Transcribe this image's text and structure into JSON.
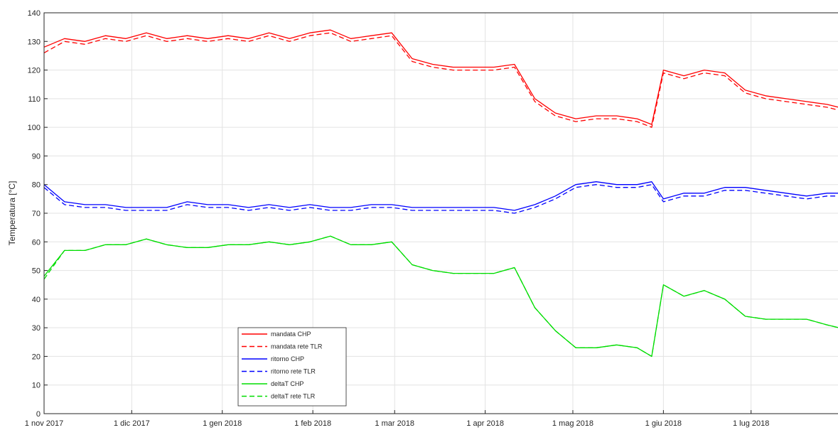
{
  "chart_data": {
    "type": "line",
    "title": "",
    "xlabel": "",
    "ylabel": "Temperatura [°C]",
    "xlim": [
      "2017-11-01",
      "2018-07-31"
    ],
    "ylim": [
      0,
      140
    ],
    "grid": true,
    "legend_position": "bottom-center",
    "x_ticks": [
      {
        "label": "1 nov 2017",
        "date": "2017-11-01"
      },
      {
        "label": "1 dic 2017",
        "date": "2017-12-01"
      },
      {
        "label": "1 gen 2018",
        "date": "2018-01-01"
      },
      {
        "label": "1 feb 2018",
        "date": "2018-02-01"
      },
      {
        "label": "1 mar 2018",
        "date": "2018-03-01"
      },
      {
        "label": "1 apr 2018",
        "date": "2018-04-01"
      },
      {
        "label": "1 mag 2018",
        "date": "2018-05-01"
      },
      {
        "label": "1 giu 2018",
        "date": "2018-06-01"
      },
      {
        "label": "1 lug 2018",
        "date": "2018-07-01"
      }
    ],
    "y_ticks": [
      0,
      10,
      20,
      30,
      40,
      50,
      60,
      70,
      80,
      90,
      100,
      110,
      120,
      130,
      140
    ],
    "series": [
      {
        "name": "mandata CHP",
        "color": "#ff0000",
        "style": "solid",
        "points": [
          [
            "2017-11-01",
            128
          ],
          [
            "2017-11-08",
            131
          ],
          [
            "2017-11-15",
            130
          ],
          [
            "2017-11-22",
            132
          ],
          [
            "2017-11-29",
            131
          ],
          [
            "2017-12-06",
            133
          ],
          [
            "2017-12-13",
            131
          ],
          [
            "2017-12-20",
            132
          ],
          [
            "2017-12-27",
            131
          ],
          [
            "2018-01-03",
            132
          ],
          [
            "2018-01-10",
            131
          ],
          [
            "2018-01-17",
            133
          ],
          [
            "2018-01-24",
            131
          ],
          [
            "2018-01-31",
            133
          ],
          [
            "2018-02-07",
            134
          ],
          [
            "2018-02-14",
            131
          ],
          [
            "2018-02-21",
            132
          ],
          [
            "2018-02-28",
            133
          ],
          [
            "2018-03-07",
            124
          ],
          [
            "2018-03-14",
            122
          ],
          [
            "2018-03-21",
            121
          ],
          [
            "2018-03-28",
            121
          ],
          [
            "2018-04-04",
            121
          ],
          [
            "2018-04-11",
            122
          ],
          [
            "2018-04-18",
            110
          ],
          [
            "2018-04-25",
            105
          ],
          [
            "2018-05-02",
            103
          ],
          [
            "2018-05-09",
            104
          ],
          [
            "2018-05-16",
            104
          ],
          [
            "2018-05-23",
            103
          ],
          [
            "2018-05-28",
            101
          ],
          [
            "2018-06-01",
            120
          ],
          [
            "2018-06-08",
            118
          ],
          [
            "2018-06-15",
            120
          ],
          [
            "2018-06-22",
            119
          ],
          [
            "2018-06-29",
            113
          ],
          [
            "2018-07-06",
            111
          ],
          [
            "2018-07-13",
            110
          ],
          [
            "2018-07-20",
            109
          ],
          [
            "2018-07-27",
            108
          ],
          [
            "2018-07-31",
            107
          ]
        ]
      },
      {
        "name": "mandata rete TLR",
        "color": "#ff0000",
        "style": "dashed",
        "points": [
          [
            "2017-11-01",
            126
          ],
          [
            "2017-11-08",
            130
          ],
          [
            "2017-11-15",
            129
          ],
          [
            "2017-11-22",
            131
          ],
          [
            "2017-11-29",
            130
          ],
          [
            "2017-12-06",
            132
          ],
          [
            "2017-12-13",
            130
          ],
          [
            "2017-12-20",
            131
          ],
          [
            "2017-12-27",
            130
          ],
          [
            "2018-01-03",
            131
          ],
          [
            "2018-01-10",
            130
          ],
          [
            "2018-01-17",
            132
          ],
          [
            "2018-01-24",
            130
          ],
          [
            "2018-01-31",
            132
          ],
          [
            "2018-02-07",
            133
          ],
          [
            "2018-02-14",
            130
          ],
          [
            "2018-02-21",
            131
          ],
          [
            "2018-02-28",
            132
          ],
          [
            "2018-03-07",
            123
          ],
          [
            "2018-03-14",
            121
          ],
          [
            "2018-03-21",
            120
          ],
          [
            "2018-03-28",
            120
          ],
          [
            "2018-04-04",
            120
          ],
          [
            "2018-04-11",
            121
          ],
          [
            "2018-04-18",
            109
          ],
          [
            "2018-04-25",
            104
          ],
          [
            "2018-05-02",
            102
          ],
          [
            "2018-05-09",
            103
          ],
          [
            "2018-05-16",
            103
          ],
          [
            "2018-05-23",
            102
          ],
          [
            "2018-05-28",
            100
          ],
          [
            "2018-06-01",
            119
          ],
          [
            "2018-06-08",
            117
          ],
          [
            "2018-06-15",
            119
          ],
          [
            "2018-06-22",
            118
          ],
          [
            "2018-06-29",
            112
          ],
          [
            "2018-07-06",
            110
          ],
          [
            "2018-07-13",
            109
          ],
          [
            "2018-07-20",
            108
          ],
          [
            "2018-07-27",
            107
          ],
          [
            "2018-07-31",
            106
          ]
        ]
      },
      {
        "name": "ritorno CHP",
        "color": "#0000ff",
        "style": "solid",
        "points": [
          [
            "2017-11-01",
            80
          ],
          [
            "2017-11-08",
            74
          ],
          [
            "2017-11-15",
            73
          ],
          [
            "2017-11-22",
            73
          ],
          [
            "2017-11-29",
            72
          ],
          [
            "2017-12-06",
            72
          ],
          [
            "2017-12-13",
            72
          ],
          [
            "2017-12-20",
            74
          ],
          [
            "2017-12-27",
            73
          ],
          [
            "2018-01-03",
            73
          ],
          [
            "2018-01-10",
            72
          ],
          [
            "2018-01-17",
            73
          ],
          [
            "2018-01-24",
            72
          ],
          [
            "2018-01-31",
            73
          ],
          [
            "2018-02-07",
            72
          ],
          [
            "2018-02-14",
            72
          ],
          [
            "2018-02-21",
            73
          ],
          [
            "2018-02-28",
            73
          ],
          [
            "2018-03-07",
            72
          ],
          [
            "2018-03-14",
            72
          ],
          [
            "2018-03-21",
            72
          ],
          [
            "2018-03-28",
            72
          ],
          [
            "2018-04-04",
            72
          ],
          [
            "2018-04-11",
            71
          ],
          [
            "2018-04-18",
            73
          ],
          [
            "2018-04-25",
            76
          ],
          [
            "2018-05-02",
            80
          ],
          [
            "2018-05-09",
            81
          ],
          [
            "2018-05-16",
            80
          ],
          [
            "2018-05-23",
            80
          ],
          [
            "2018-05-28",
            81
          ],
          [
            "2018-06-01",
            75
          ],
          [
            "2018-06-08",
            77
          ],
          [
            "2018-06-15",
            77
          ],
          [
            "2018-06-22",
            79
          ],
          [
            "2018-06-29",
            79
          ],
          [
            "2018-07-06",
            78
          ],
          [
            "2018-07-13",
            77
          ],
          [
            "2018-07-20",
            76
          ],
          [
            "2018-07-27",
            77
          ],
          [
            "2018-07-31",
            77
          ]
        ]
      },
      {
        "name": "ritorno rete TLR",
        "color": "#0000ff",
        "style": "dashed",
        "points": [
          [
            "2017-11-01",
            79
          ],
          [
            "2017-11-08",
            73
          ],
          [
            "2017-11-15",
            72
          ],
          [
            "2017-11-22",
            72
          ],
          [
            "2017-11-29",
            71
          ],
          [
            "2017-12-06",
            71
          ],
          [
            "2017-12-13",
            71
          ],
          [
            "2017-12-20",
            73
          ],
          [
            "2017-12-27",
            72
          ],
          [
            "2018-01-03",
            72
          ],
          [
            "2018-01-10",
            71
          ],
          [
            "2018-01-17",
            72
          ],
          [
            "2018-01-24",
            71
          ],
          [
            "2018-01-31",
            72
          ],
          [
            "2018-02-07",
            71
          ],
          [
            "2018-02-14",
            71
          ],
          [
            "2018-02-21",
            72
          ],
          [
            "2018-02-28",
            72
          ],
          [
            "2018-03-07",
            71
          ],
          [
            "2018-03-14",
            71
          ],
          [
            "2018-03-21",
            71
          ],
          [
            "2018-03-28",
            71
          ],
          [
            "2018-04-04",
            71
          ],
          [
            "2018-04-11",
            70
          ],
          [
            "2018-04-18",
            72
          ],
          [
            "2018-04-25",
            75
          ],
          [
            "2018-05-02",
            79
          ],
          [
            "2018-05-09",
            80
          ],
          [
            "2018-05-16",
            79
          ],
          [
            "2018-05-23",
            79
          ],
          [
            "2018-05-28",
            80
          ],
          [
            "2018-06-01",
            74
          ],
          [
            "2018-06-08",
            76
          ],
          [
            "2018-06-15",
            76
          ],
          [
            "2018-06-22",
            78
          ],
          [
            "2018-06-29",
            78
          ],
          [
            "2018-07-06",
            77
          ],
          [
            "2018-07-13",
            76
          ],
          [
            "2018-07-20",
            75
          ],
          [
            "2018-07-27",
            76
          ],
          [
            "2018-07-31",
            76
          ]
        ]
      },
      {
        "name": "deltaT CHP",
        "color": "#00dd00",
        "style": "solid",
        "points": [
          [
            "2017-11-01",
            48
          ],
          [
            "2017-11-08",
            57
          ],
          [
            "2017-11-15",
            57
          ],
          [
            "2017-11-22",
            59
          ],
          [
            "2017-11-29",
            59
          ],
          [
            "2017-12-06",
            61
          ],
          [
            "2017-12-13",
            59
          ],
          [
            "2017-12-20",
            58
          ],
          [
            "2017-12-27",
            58
          ],
          [
            "2018-01-03",
            59
          ],
          [
            "2018-01-10",
            59
          ],
          [
            "2018-01-17",
            60
          ],
          [
            "2018-01-24",
            59
          ],
          [
            "2018-01-31",
            60
          ],
          [
            "2018-02-07",
            62
          ],
          [
            "2018-02-14",
            59
          ],
          [
            "2018-02-21",
            59
          ],
          [
            "2018-02-28",
            60
          ],
          [
            "2018-03-07",
            52
          ],
          [
            "2018-03-14",
            50
          ],
          [
            "2018-03-21",
            49
          ],
          [
            "2018-03-28",
            49
          ],
          [
            "2018-04-04",
            49
          ],
          [
            "2018-04-11",
            51
          ],
          [
            "2018-04-18",
            37
          ],
          [
            "2018-04-25",
            29
          ],
          [
            "2018-05-02",
            23
          ],
          [
            "2018-05-09",
            23
          ],
          [
            "2018-05-16",
            24
          ],
          [
            "2018-05-23",
            23
          ],
          [
            "2018-05-28",
            20
          ],
          [
            "2018-06-01",
            45
          ],
          [
            "2018-06-08",
            41
          ],
          [
            "2018-06-15",
            43
          ],
          [
            "2018-06-22",
            40
          ],
          [
            "2018-06-29",
            34
          ],
          [
            "2018-07-06",
            33
          ],
          [
            "2018-07-13",
            33
          ],
          [
            "2018-07-20",
            33
          ],
          [
            "2018-07-27",
            31
          ],
          [
            "2018-07-31",
            30
          ]
        ]
      },
      {
        "name": "deltaT rete TLR",
        "color": "#00dd00",
        "style": "dashed",
        "points": [
          [
            "2017-11-01",
            47
          ],
          [
            "2017-11-08",
            57
          ],
          [
            "2017-11-15",
            57
          ],
          [
            "2017-11-22",
            59
          ],
          [
            "2017-11-29",
            59
          ],
          [
            "2017-12-06",
            61
          ],
          [
            "2017-12-13",
            59
          ],
          [
            "2017-12-20",
            58
          ],
          [
            "2017-12-27",
            58
          ],
          [
            "2018-01-03",
            59
          ],
          [
            "2018-01-10",
            59
          ],
          [
            "2018-01-17",
            60
          ],
          [
            "2018-01-24",
            59
          ],
          [
            "2018-01-31",
            60
          ],
          [
            "2018-02-07",
            62
          ],
          [
            "2018-02-14",
            59
          ],
          [
            "2018-02-21",
            59
          ],
          [
            "2018-02-28",
            60
          ],
          [
            "2018-03-07",
            52
          ],
          [
            "2018-03-14",
            50
          ],
          [
            "2018-03-21",
            49
          ],
          [
            "2018-03-28",
            49
          ],
          [
            "2018-04-04",
            49
          ],
          [
            "2018-04-11",
            51
          ],
          [
            "2018-04-18",
            37
          ],
          [
            "2018-04-25",
            29
          ],
          [
            "2018-05-02",
            23
          ],
          [
            "2018-05-09",
            23
          ],
          [
            "2018-05-16",
            24
          ],
          [
            "2018-05-23",
            23
          ],
          [
            "2018-05-28",
            20
          ],
          [
            "2018-06-01",
            45
          ],
          [
            "2018-06-08",
            41
          ],
          [
            "2018-06-15",
            43
          ],
          [
            "2018-06-22",
            40
          ],
          [
            "2018-06-29",
            34
          ],
          [
            "2018-07-06",
            33
          ],
          [
            "2018-07-13",
            33
          ],
          [
            "2018-07-20",
            33
          ],
          [
            "2018-07-27",
            31
          ],
          [
            "2018-07-31",
            30
          ]
        ]
      }
    ]
  }
}
